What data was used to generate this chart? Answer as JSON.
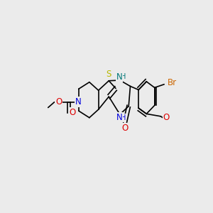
{
  "background_color": "#ebebeb",
  "figsize": [
    3.0,
    3.0
  ],
  "dpi": 100,
  "xlim": [
    0.0,
    1.0
  ],
  "ylim": [
    0.25,
    0.85
  ]
}
